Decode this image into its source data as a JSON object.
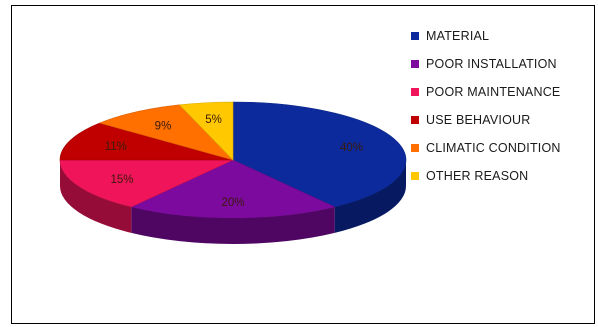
{
  "chart_data": {
    "type": "pie",
    "style": "3d",
    "labels": [
      "MATERIAL",
      "POOR INSTALLATION",
      "POOR MAINTENANCE",
      "USE BEHAVIOUR",
      "CLIMATIC CONDITION",
      "OTHER REASON"
    ],
    "values": [
      40,
      20,
      15,
      11,
      9,
      5
    ],
    "data_labels": [
      "40%",
      "20%",
      "15%",
      "11%",
      "9%",
      "5%"
    ],
    "colors": [
      "#0c2a9c",
      "#7d0a9e",
      "#f0145a",
      "#c00000",
      "#ff7000",
      "#ffc800"
    ],
    "legend_position": "right",
    "title": ""
  }
}
